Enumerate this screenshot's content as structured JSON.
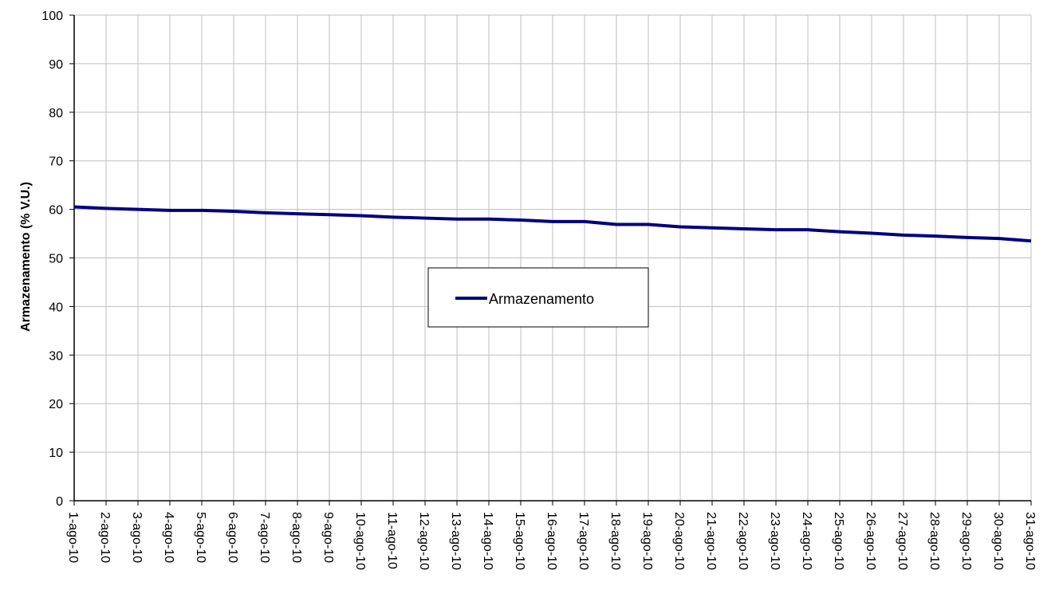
{
  "chart_data": {
    "type": "line",
    "title": "",
    "xlabel": "",
    "ylabel": "Armazenamento (% V.U.)",
    "ylim": [
      0,
      100
    ],
    "yticks": [
      0,
      10,
      20,
      30,
      40,
      50,
      60,
      70,
      80,
      90,
      100
    ],
    "grid": true,
    "legend_position": "center",
    "categories": [
      "1-ago-10",
      "2-ago-10",
      "3-ago-10",
      "4-ago-10",
      "5-ago-10",
      "6-ago-10",
      "7-ago-10",
      "8-ago-10",
      "9-ago-10",
      "10-ago-10",
      "11-ago-10",
      "12-ago-10",
      "13-ago-10",
      "14-ago-10",
      "15-ago-10",
      "16-ago-10",
      "17-ago-10",
      "18-ago-10",
      "19-ago-10",
      "20-ago-10",
      "21-ago-10",
      "22-ago-10",
      "23-ago-10",
      "24-ago-10",
      "25-ago-10",
      "26-ago-10",
      "27-ago-10",
      "28-ago-10",
      "29-ago-10",
      "30-ago-10",
      "31-ago-10"
    ],
    "series": [
      {
        "name": "Armazenamento",
        "color": "#000080",
        "values": [
          60.5,
          60.2,
          60.0,
          59.8,
          59.8,
          59.6,
          59.3,
          59.1,
          58.9,
          58.7,
          58.4,
          58.2,
          58.0,
          58.0,
          57.8,
          57.5,
          57.5,
          56.9,
          56.9,
          56.4,
          56.2,
          56.0,
          55.8,
          55.8,
          55.4,
          55.1,
          54.7,
          54.5,
          54.2,
          54.0,
          53.5
        ]
      }
    ]
  }
}
